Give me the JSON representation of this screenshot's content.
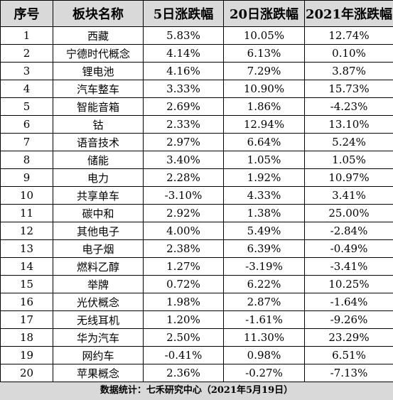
{
  "table": {
    "headers": [
      "序号",
      "板块名称",
      "5日涨跌幅",
      "20日涨跌幅",
      "2021年涨跌幅"
    ],
    "rows": [
      [
        "1",
        "西藏",
        "5.83%",
        "10.05%",
        "12.74%"
      ],
      [
        "2",
        "宁德时代概念",
        "4.14%",
        "6.13%",
        "0.10%"
      ],
      [
        "3",
        "锂电池",
        "4.16%",
        "7.29%",
        "3.87%"
      ],
      [
        "4",
        "汽车整车",
        "3.33%",
        "10.90%",
        "15.73%"
      ],
      [
        "5",
        "智能音箱",
        "2.69%",
        "1.86%",
        "-4.23%"
      ],
      [
        "6",
        "钴",
        "2.33%",
        "12.94%",
        "13.10%"
      ],
      [
        "7",
        "语音技术",
        "2.97%",
        "6.64%",
        "5.24%"
      ],
      [
        "8",
        "储能",
        "3.40%",
        "1.05%",
        "1.05%"
      ],
      [
        "9",
        "电力",
        "2.28%",
        "1.92%",
        "10.97%"
      ],
      [
        "10",
        "共享单车",
        "-3.10%",
        "4.33%",
        "3.41%"
      ],
      [
        "11",
        "碳中和",
        "2.92%",
        "1.38%",
        "25.00%"
      ],
      [
        "12",
        "其他电子",
        "4.00%",
        "5.49%",
        "-2.84%"
      ],
      [
        "13",
        "电子烟",
        "2.38%",
        "6.39%",
        "-0.49%"
      ],
      [
        "14",
        "燃料乙醇",
        "1.27%",
        "-3.19%",
        "-3.41%"
      ],
      [
        "15",
        "举牌",
        "0.72%",
        "6.22%",
        "10.25%"
      ],
      [
        "16",
        "光伏概念",
        "1.98%",
        "2.87%",
        "-1.64%"
      ],
      [
        "17",
        "无线耳机",
        "1.20%",
        "-1.61%",
        "-9.26%"
      ],
      [
        "18",
        "华为汽车",
        "2.50%",
        "11.30%",
        "23.29%"
      ],
      [
        "19",
        "网约车",
        "-0.41%",
        "0.98%",
        "6.51%"
      ],
      [
        "20",
        "苹果概念",
        "2.36%",
        "-0.27%",
        "-7.13%"
      ]
    ]
  },
  "footer": {
    "text": "数据统计：七禾研究中心（2021年5月19日）"
  },
  "colors": {
    "header_bg": "#d9d9d9",
    "footer_bg": "#d9d9d9",
    "border": "#000000"
  }
}
